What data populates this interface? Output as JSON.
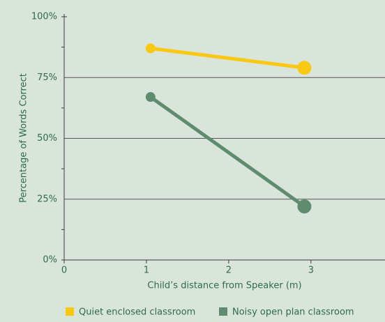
{
  "chart_data": {
    "type": "line",
    "xlabel": "Child’s distance from Speaker (m)",
    "ylabel": "Percentage of Words Correct",
    "xlim": [
      0,
      3.9
    ],
    "xticks": [
      0,
      1,
      2,
      3
    ],
    "ylim": [
      0,
      100
    ],
    "yticks": [
      {
        "value": 0,
        "label": "0%"
      },
      {
        "value": 25,
        "label": "25%"
      },
      {
        "value": 50,
        "label": "50%"
      },
      {
        "value": 75,
        "label": "75%"
      },
      {
        "value": 100,
        "label": "100%"
      }
    ],
    "yminor_ticks": [
      12.5,
      37.5,
      62.5,
      87.5
    ],
    "grid": true,
    "legend": "bottom",
    "series": [
      {
        "name": "Quiet enclosed classroom",
        "color": "#f8c812",
        "x": [
          1.05,
          2.92
        ],
        "values": [
          87,
          79
        ]
      },
      {
        "name": "Noisy open plan classroom",
        "color": "#5f8c6c",
        "x": [
          1.05,
          2.92
        ],
        "values": [
          67,
          22
        ]
      }
    ]
  }
}
